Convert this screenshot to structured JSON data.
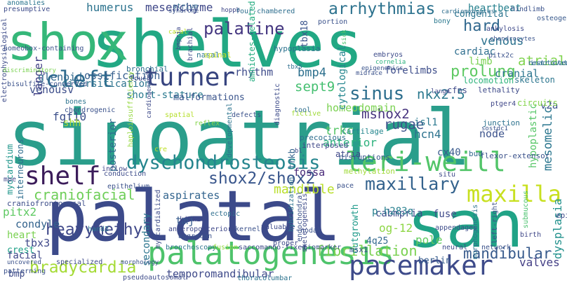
{
  "words": [
    {
      "text": "sinoatrial",
      "color": "#2a9e8b"
    },
    {
      "text": "palatal",
      "color": "#3c4a8a"
    },
    {
      "text": "shelves",
      "color": "#22a884"
    },
    {
      "text": "san",
      "color": "#20a386"
    },
    {
      "text": "shox",
      "color": "#35b779"
    },
    {
      "text": "palatogenesis",
      "color": "#4ec36b"
    },
    {
      "text": "pacemaker",
      "color": "#3e4b8a"
    },
    {
      "text": "leri-weill",
      "color": "#52c569"
    },
    {
      "text": "dyschondrosteosis",
      "color": "#25858e"
    },
    {
      "text": "shelf",
      "color": "#3b1c5a"
    },
    {
      "text": "turner",
      "color": "#37447f"
    },
    {
      "text": "cleft",
      "color": "#2f6b8e"
    },
    {
      "text": "maxilla",
      "color": "#c8e020"
    },
    {
      "text": "arrhythmias",
      "color": "#2c728e"
    },
    {
      "text": "palatine",
      "color": "#453781"
    },
    {
      "text": "shox2/shox2",
      "color": "#39568c"
    },
    {
      "text": "sinus",
      "color": "#2e6f8e"
    },
    {
      "text": "maxillary",
      "color": "#33628d"
    },
    {
      "text": "heavymethyl",
      "color": "#3f4889"
    },
    {
      "text": "bradycardia",
      "color": "#a5db36"
    },
    {
      "text": "fibrillation",
      "color": "#7ad151"
    },
    {
      "text": "craniofacial",
      "color": "#6ece58"
    },
    {
      "text": "mandibular",
      "color": "#375a8c"
    },
    {
      "text": "hard",
      "color": "#31688e"
    },
    {
      "text": "prolung",
      "color": "#5ec962"
    },
    {
      "text": "mshox2",
      "color": "#46337e"
    },
    {
      "text": "nkx2.5",
      "color": "#2a788e"
    },
    {
      "text": "sept9",
      "color": "#44bf70"
    },
    {
      "text": "bmp4",
      "color": "#2d708e"
    },
    {
      "text": "rugae",
      "color": "#3b528b"
    },
    {
      "text": "mandible",
      "color": "#b8de29"
    },
    {
      "text": "temporomandibular",
      "color": "#3e4989"
    },
    {
      "text": "langer",
      "color": "#424086"
    },
    {
      "text": "humerus",
      "color": "#2c738e"
    },
    {
      "text": "mesenchyme",
      "color": "#3f4788"
    },
    {
      "text": "mesomelic",
      "color": "#2a768e"
    },
    {
      "text": "atrial",
      "color": "#7fd34e"
    },
    {
      "text": "venous",
      "color": "#2c728e"
    },
    {
      "text": "cranial",
      "color": "#2b758e"
    },
    {
      "text": "limb",
      "color": "#7ad151"
    },
    {
      "text": "heartbeat",
      "color": "#26818e"
    },
    {
      "text": "rhythm",
      "color": "#3e4c8a"
    },
    {
      "text": "glenoid",
      "color": "#31688e"
    },
    {
      "text": "ossification",
      "color": "#355e8d"
    },
    {
      "text": "forelimbs",
      "color": "#3d4d8a"
    },
    {
      "text": "homeodomain",
      "color": "#7ad151"
    },
    {
      "text": "short-stature",
      "color": "#29798e"
    },
    {
      "text": "fgf10",
      "color": "#3c4f8a"
    },
    {
      "text": "posterior",
      "color": "#2f6c8e"
    },
    {
      "text": "trkc",
      "color": "#56c667"
    },
    {
      "text": "anterior",
      "color": "#2db27d"
    },
    {
      "text": "hcn4",
      "color": "#2c728e"
    },
    {
      "text": "node",
      "color": "#3b528b"
    },
    {
      "text": "isl1",
      "color": "#2a788e"
    },
    {
      "text": "tbx18",
      "color": "#3a548c"
    },
    {
      "text": "tbx3",
      "color": "#3f4889"
    },
    {
      "text": "pitx2",
      "color": "#5ec962"
    },
    {
      "text": "condyle",
      "color": "#33638d"
    },
    {
      "text": "tmj",
      "color": "#375b8d"
    },
    {
      "text": "aspirates",
      "color": "#32648e"
    },
    {
      "text": "fossa",
      "color": "#482878"
    },
    {
      "text": "cabmpria",
      "color": "#3d4d8a"
    },
    {
      "text": "fuse",
      "color": "#3e4a89"
    },
    {
      "text": "og-12",
      "color": "#8ed645"
    },
    {
      "text": "p.h283q",
      "color": "#277f8e"
    },
    {
      "text": "pole",
      "color": "#63cb5f"
    },
    {
      "text": "valves",
      "color": "#433e85"
    },
    {
      "text": "dysplasia",
      "color": "#21918c"
    },
    {
      "text": "venousv",
      "color": "#3d4e8a"
    },
    {
      "text": "myocardium",
      "color": "#1f968b"
    },
    {
      "text": "interneurons",
      "color": "#2e6e8e"
    },
    {
      "text": "craniofrontonasal",
      "color": "#3d4e8a"
    },
    {
      "text": "secondary",
      "color": "#2b758e"
    },
    {
      "text": "outgrowth",
      "color": "#1f9a8a"
    },
    {
      "text": "cytological",
      "color": "#24868e"
    },
    {
      "text": "hypoplastic",
      "color": "#56c667"
    },
    {
      "text": "heart",
      "color": "#7ad151"
    },
    {
      "text": "facial",
      "color": "#3f4788"
    },
    {
      "text": "crest",
      "color": "#1fa187"
    },
    {
      "text": "bmp",
      "color": "#3e4a89"
    },
    {
      "text": "berlin",
      "color": "#365c8d"
    },
    {
      "text": "shh",
      "color": "#a8db34"
    },
    {
      "text": "trkb",
      "color": "#33638d"
    },
    {
      "text": "4q25",
      "color": "#31688e"
    },
    {
      "text": "cx40",
      "color": "#38598c"
    },
    {
      "text": "msx1",
      "color": "#3b528b"
    },
    {
      "text": "diversification",
      "color": "#2c738e"
    },
    {
      "text": "malformations",
      "color": "#3a548c"
    },
    {
      "text": "v2a",
      "color": "#3b528b"
    },
    {
      "text": "congenital",
      "color": "#2b748e"
    },
    {
      "text": "cardiac",
      "color": "#2e6e8e"
    },
    {
      "text": "locomotion",
      "color": "#2fb47c"
    },
    {
      "text": "circuits",
      "color": "#84d44b"
    },
    {
      "text": "atria",
      "color": "#3f4788"
    },
    {
      "text": "cartilage",
      "color": "#24868e"
    },
    {
      "text": "precocious",
      "color": "#2e6e8e"
    },
    {
      "text": "diagnostic",
      "color": "#3e4c8a"
    },
    {
      "text": "interposed",
      "color": "#3f4889"
    },
    {
      "text": "disruptions",
      "color": "#38598c"
    },
    {
      "text": "flexor-extensor",
      "color": "#3b528b"
    },
    {
      "text": "bud",
      "color": "#31688e"
    },
    {
      "text": "lethality",
      "color": "#3e4a89"
    },
    {
      "text": "junction",
      "color": "#2c728e"
    },
    {
      "text": "sostdc1",
      "color": "#3a548c"
    },
    {
      "text": "ptger4",
      "color": "#3f4788"
    },
    {
      "text": "skeleton",
      "color": "#2b758e"
    },
    {
      "text": "restrictedly",
      "color": "#32648e"
    },
    {
      "text": "inactivation",
      "color": "#2c738e"
    },
    {
      "text": "pitx2c",
      "color": "#3b528b"
    },
    {
      "text": "cfns",
      "color": "#3e4a89"
    },
    {
      "text": "lange",
      "color": "#3f4788"
    },
    {
      "text": "chondrocytes",
      "color": "#3a548c"
    },
    {
      "text": "cardiomyocytes",
      "color": "#2e6e8e"
    },
    {
      "text": "ankylosis",
      "color": "#3e4989"
    },
    {
      "text": "bony",
      "color": "#2a788e"
    },
    {
      "text": "hindlimb",
      "color": "#3b528b"
    },
    {
      "text": "osteogenic",
      "color": "#38598c"
    },
    {
      "text": "anomalies",
      "color": "#2b758e"
    },
    {
      "text": "presumptive",
      "color": "#3e4c8a"
    },
    {
      "text": "atrium",
      "color": "#31688e"
    },
    {
      "text": "syndrome",
      "color": "#3a548c"
    },
    {
      "text": "hoppb",
      "color": "#3f4788"
    },
    {
      "text": "four-chambered",
      "color": "#2e6e8e"
    },
    {
      "text": "portion",
      "color": "#3b528b"
    },
    {
      "text": "sick",
      "color": "#4ac16d"
    },
    {
      "text": "embryos",
      "color": "#3e4c8a"
    },
    {
      "text": "cornelia",
      "color": "#2db27d"
    },
    {
      "text": "epigenomics",
      "color": "#3a548c"
    },
    {
      "text": "midface",
      "color": "#3b528b"
    },
    {
      "text": "hypoplasia",
      "color": "#2c728e"
    },
    {
      "text": "homeobox-containing",
      "color": "#3b528b"
    },
    {
      "text": "bronchial",
      "color": "#2e6e8e"
    },
    {
      "text": "caval",
      "color": "#bddf26"
    },
    {
      "text": "nasal",
      "color": "#2b758e"
    },
    {
      "text": "spinal",
      "color": "#c2df23"
    },
    {
      "text": "bmpria",
      "color": "#3e4989"
    },
    {
      "text": "brachial",
      "color": "#3e4a89"
    },
    {
      "text": "tbx5",
      "color": "#2e6e8e"
    },
    {
      "text": "amniotes-related",
      "color": "#26ad81"
    },
    {
      "text": "electrophysiological",
      "color": "#3e4c8a"
    },
    {
      "text": "discriminatory",
      "color": "#7ad151"
    },
    {
      "text": "bisulfite-converted",
      "color": "#3b528b"
    },
    {
      "text": "bones",
      "color": "#2c738e"
    },
    {
      "text": "touch",
      "color": "#3e4a89"
    },
    {
      "text": "chondrogenic",
      "color": "#3b528b"
    },
    {
      "text": "haploinsufficiency",
      "color": "#95d840"
    },
    {
      "text": "spatial",
      "color": "#b5de2b"
    },
    {
      "text": "reflex",
      "color": "#84d44b"
    },
    {
      "text": "cardiogenesis",
      "color": "#3e4a89"
    },
    {
      "text": "defects",
      "color": "#3b528b"
    },
    {
      "text": "fictive",
      "color": "#a0da39"
    },
    {
      "text": "tool",
      "color": "#2e6e8e"
    },
    {
      "text": "cre",
      "color": "#bddf26"
    },
    {
      "text": "developmental",
      "color": "#2c738e"
    },
    {
      "text": "bl",
      "color": "#3f4788"
    },
    {
      "text": "inflow",
      "color": "#3f4788"
    },
    {
      "text": "conduction",
      "color": "#3e4c8a"
    },
    {
      "text": "epithelium",
      "color": "#3b528b"
    },
    {
      "text": "methylation",
      "color": "#a0da39"
    },
    {
      "text": "situ",
      "color": "#3e4a89"
    },
    {
      "text": "mpe",
      "color": "#3f4788"
    },
    {
      "text": "uncovered",
      "color": "#3b528b"
    },
    {
      "text": "hand2",
      "color": "#2c738e"
    },
    {
      "text": "myocardialized",
      "color": "#3e4c8a"
    },
    {
      "text": "ki/ki",
      "color": "#3f4788"
    },
    {
      "text": "ectopic",
      "color": "#2e6e8e"
    },
    {
      "text": "kernel",
      "color": "#3b528b"
    },
    {
      "text": "valuable",
      "color": "#3e4989"
    },
    {
      "text": "nodal",
      "color": "#3b528b"
    },
    {
      "text": "anteroposterior",
      "color": "#3f4889"
    },
    {
      "text": "aggrecan",
      "color": "#3b528b"
    },
    {
      "text": "proper",
      "color": "#3e4a89"
    },
    {
      "text": "hybridization",
      "color": "#2c738e"
    },
    {
      "text": "endochondral",
      "color": "#3b528b"
    },
    {
      "text": "appendages",
      "color": "#3e4c8a"
    },
    {
      "text": "morphogenesis",
      "color": "#2c738e"
    },
    {
      "text": "left-right",
      "color": "#3b528b"
    },
    {
      "text": "submucous",
      "color": "#4ac16d"
    },
    {
      "text": "epi",
      "color": "#3e4989"
    },
    {
      "text": "birth",
      "color": "#3f4788"
    },
    {
      "text": "patterning",
      "color": "#3b528b"
    },
    {
      "text": "bronchoscopy",
      "color": "#2c738e"
    },
    {
      "text": "fusion",
      "color": "#95d840"
    },
    {
      "text": "saccomanno-fixed",
      "color": "#3e4a89"
    },
    {
      "text": "biomarker",
      "color": "#3b528b"
    },
    {
      "text": "neural",
      "color": "#3e4c8a"
    },
    {
      "text": "network",
      "color": "#3b528b"
    },
    {
      "text": "specialized",
      "color": "#3e4a89"
    },
    {
      "text": "morphology",
      "color": "#3b528b"
    },
    {
      "text": "thoracolumbar",
      "color": "#2c738e"
    },
    {
      "text": "pseudoautosomal",
      "color": "#3e4c8a"
    },
    {
      "text": "pace",
      "color": "#3b528b"
    },
    {
      "text": "skeletogenesis",
      "color": "#3e4a89"
    }
  ]
}
